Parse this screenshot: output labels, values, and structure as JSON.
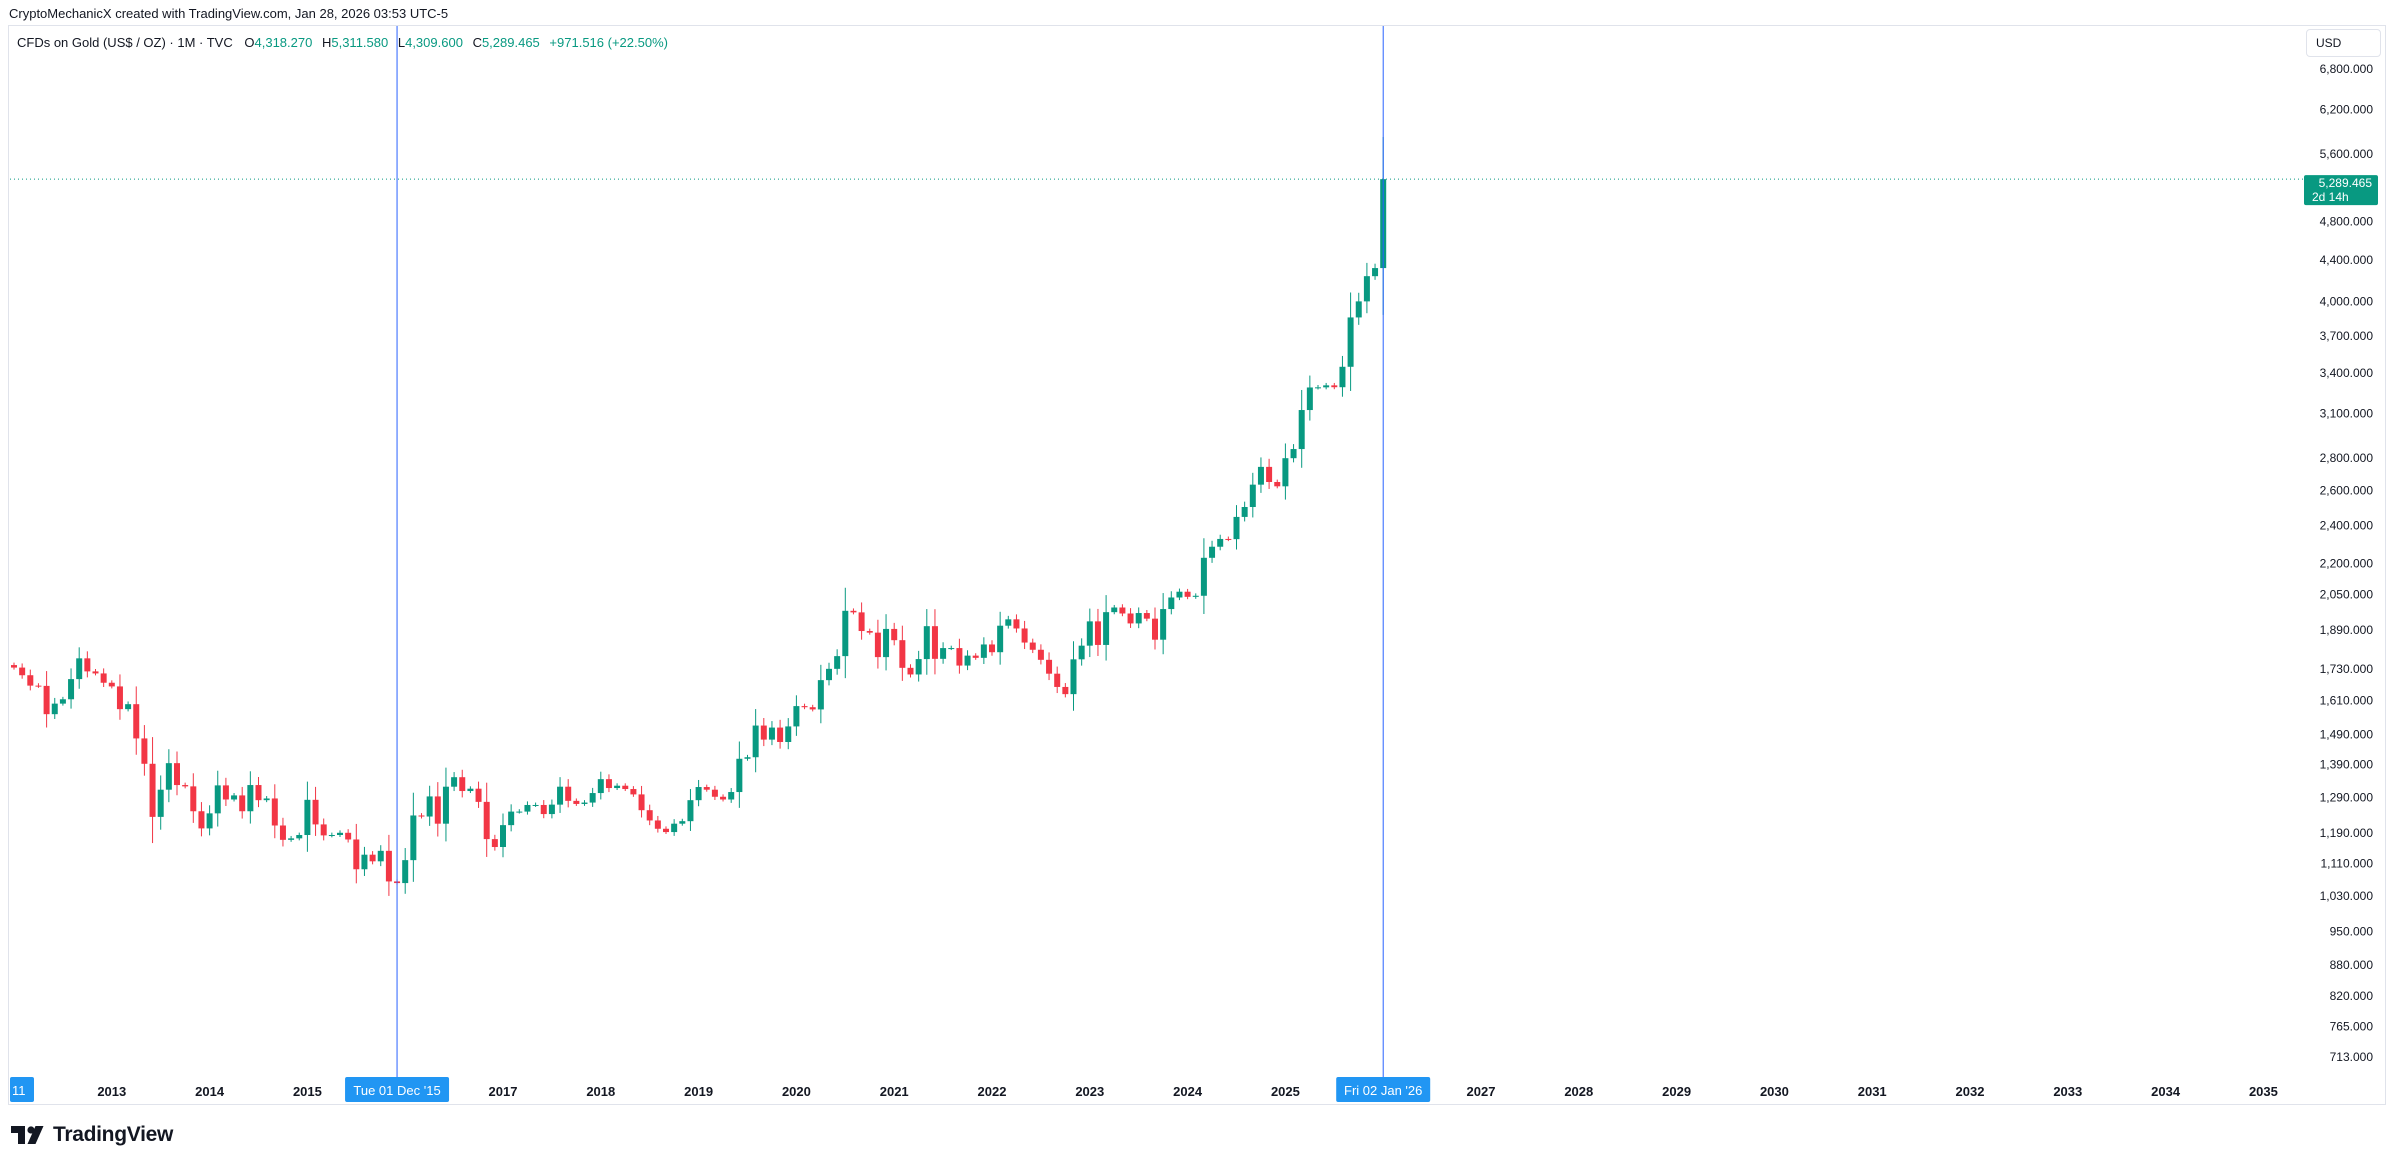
{
  "header": {
    "text": "CryptoMechanicX created with TradingView.com, Jan 28, 2026 03:53 UTC-5"
  },
  "legend": {
    "symbol": "CFDs on Gold (US$ / OZ) · 1M · TVC",
    "o_label": "O",
    "o_value": "4,318.270",
    "h_label": "H",
    "h_value": "5,311.580",
    "l_label": "L",
    "l_value": "4,309.600",
    "c_label": "C",
    "c_value": "5,289.465",
    "change": "+971.516 (+22.50%)"
  },
  "currency": "USD",
  "last_price": {
    "value": "5,289.465",
    "countdown": "2d 14h"
  },
  "crosshair_labels": {
    "left": "Tue 01 Dec '15",
    "right": "Fri 02 Jan '26",
    "edge": "11"
  },
  "footer": {
    "brand": "TradingView"
  },
  "colors": {
    "up": "#089981",
    "down": "#f23645",
    "crosshair": "#2962ff",
    "label_bg": "#2196f3"
  },
  "chart_data": {
    "type": "candlestick",
    "scale": "log",
    "x_ticks": [
      "2013",
      "2014",
      "2015",
      "2017",
      "2018",
      "2019",
      "2020",
      "2021",
      "2022",
      "2023",
      "2024",
      "2025",
      "2027",
      "2028",
      "2029",
      "2030",
      "2031",
      "2032",
      "2033",
      "2034",
      "2035"
    ],
    "y_ticks": [
      "6,800.000",
      "6,200.000",
      "5,600.000",
      "4,800.000",
      "4,400.000",
      "4,000.000",
      "3,700.000",
      "3,400.000",
      "3,100.000",
      "2,800.000",
      "2,600.000",
      "2,400.000",
      "2,200.000",
      "2,050.000",
      "1,890.000",
      "1,730.000",
      "1,610.000",
      "1,490.000",
      "1,390.000",
      "1,290.000",
      "1,190.000",
      "1,110.000",
      "1,030.000",
      "950.000",
      "880.000",
      "820.000",
      "765.000",
      "713.000"
    ],
    "y_tick_values": [
      6800,
      6200,
      5600,
      4800,
      4400,
      4000,
      3700,
      3400,
      3100,
      2800,
      2600,
      2400,
      2200,
      2050,
      1890,
      1730,
      1610,
      1490,
      1390,
      1290,
      1190,
      1110,
      1030,
      950,
      880,
      820,
      765,
      713
    ],
    "x_range": [
      "2012-01",
      "2035-12"
    ],
    "y_range": [
      680,
      7300
    ],
    "candle_closes": [
      [
        "2012-01",
        1735
      ],
      [
        "2012-02",
        1705
      ],
      [
        "2012-03",
        1665
      ],
      [
        "2012-04",
        1664
      ],
      [
        "2012-05",
        1560
      ],
      [
        "2012-06",
        1598
      ],
      [
        "2012-07",
        1614
      ],
      [
        "2012-08",
        1690
      ],
      [
        "2012-09",
        1772
      ],
      [
        "2012-10",
        1720
      ],
      [
        "2012-11",
        1712
      ],
      [
        "2012-12",
        1676
      ],
      [
        "2013-01",
        1662
      ],
      [
        "2013-02",
        1578
      ],
      [
        "2013-03",
        1596
      ],
      [
        "2013-04",
        1476
      ],
      [
        "2013-05",
        1393
      ],
      [
        "2013-06",
        1234
      ],
      [
        "2013-07",
        1313
      ],
      [
        "2013-08",
        1395
      ],
      [
        "2013-09",
        1327
      ],
      [
        "2013-10",
        1323
      ],
      [
        "2013-11",
        1250
      ],
      [
        "2013-12",
        1202
      ],
      [
        "2014-01",
        1244
      ],
      [
        "2014-02",
        1326
      ],
      [
        "2014-03",
        1284
      ],
      [
        "2014-04",
        1296
      ],
      [
        "2014-05",
        1250
      ],
      [
        "2014-06",
        1327
      ],
      [
        "2014-07",
        1282
      ],
      [
        "2014-08",
        1287
      ],
      [
        "2014-09",
        1210
      ],
      [
        "2014-10",
        1171
      ],
      [
        "2014-11",
        1175
      ],
      [
        "2014-12",
        1184
      ],
      [
        "2015-01",
        1283
      ],
      [
        "2015-02",
        1213
      ],
      [
        "2015-03",
        1183
      ],
      [
        "2015-04",
        1184
      ],
      [
        "2015-05",
        1190
      ],
      [
        "2015-06",
        1172
      ],
      [
        "2015-07",
        1095
      ],
      [
        "2015-08",
        1132
      ],
      [
        "2015-09",
        1115
      ],
      [
        "2015-10",
        1142
      ],
      [
        "2015-11",
        1065
      ],
      [
        "2015-12",
        1061
      ],
      [
        "2016-01",
        1118
      ],
      [
        "2016-02",
        1238
      ],
      [
        "2016-03",
        1235
      ],
      [
        "2016-04",
        1293
      ],
      [
        "2016-05",
        1215
      ],
      [
        "2016-06",
        1322
      ],
      [
        "2016-07",
        1351
      ],
      [
        "2016-08",
        1309
      ],
      [
        "2016-09",
        1316
      ],
      [
        "2016-10",
        1277
      ],
      [
        "2016-11",
        1173
      ],
      [
        "2016-12",
        1152
      ],
      [
        "2017-01",
        1211
      ],
      [
        "2017-02",
        1249
      ],
      [
        "2017-03",
        1249
      ],
      [
        "2017-04",
        1268
      ],
      [
        "2017-05",
        1268
      ],
      [
        "2017-06",
        1242
      ],
      [
        "2017-07",
        1269
      ],
      [
        "2017-08",
        1322
      ],
      [
        "2017-09",
        1280
      ],
      [
        "2017-10",
        1271
      ],
      [
        "2017-11",
        1275
      ],
      [
        "2017-12",
        1303
      ],
      [
        "2018-01",
        1345
      ],
      [
        "2018-02",
        1318
      ],
      [
        "2018-03",
        1325
      ],
      [
        "2018-04",
        1315
      ],
      [
        "2018-05",
        1299
      ],
      [
        "2018-06",
        1253
      ],
      [
        "2018-07",
        1224
      ],
      [
        "2018-08",
        1201
      ],
      [
        "2018-09",
        1192
      ],
      [
        "2018-10",
        1215
      ],
      [
        "2018-11",
        1222
      ],
      [
        "2018-12",
        1282
      ],
      [
        "2019-01",
        1321
      ],
      [
        "2019-02",
        1313
      ],
      [
        "2019-03",
        1292
      ],
      [
        "2019-04",
        1284
      ],
      [
        "2019-05",
        1306
      ],
      [
        "2019-06",
        1409
      ],
      [
        "2019-07",
        1414
      ],
      [
        "2019-08",
        1520
      ],
      [
        "2019-09",
        1472
      ],
      [
        "2019-10",
        1513
      ],
      [
        "2019-11",
        1464
      ],
      [
        "2019-12",
        1517
      ],
      [
        "2020-01",
        1589
      ],
      [
        "2020-02",
        1585
      ],
      [
        "2020-03",
        1577
      ],
      [
        "2020-04",
        1686
      ],
      [
        "2020-05",
        1730
      ],
      [
        "2020-06",
        1781
      ],
      [
        "2020-07",
        1975
      ],
      [
        "2020-08",
        1968
      ],
      [
        "2020-09",
        1886
      ],
      [
        "2020-10",
        1879
      ],
      [
        "2020-11",
        1777
      ],
      [
        "2020-12",
        1895
      ],
      [
        "2021-01",
        1847
      ],
      [
        "2021-02",
        1734
      ],
      [
        "2021-03",
        1708
      ],
      [
        "2021-04",
        1769
      ],
      [
        "2021-05",
        1907
      ],
      [
        "2021-06",
        1770
      ],
      [
        "2021-07",
        1814
      ],
      [
        "2021-08",
        1814
      ],
      [
        "2021-09",
        1743
      ],
      [
        "2021-10",
        1783
      ],
      [
        "2021-11",
        1774
      ],
      [
        "2021-12",
        1829
      ],
      [
        "2022-01",
        1797
      ],
      [
        "2022-02",
        1909
      ],
      [
        "2022-03",
        1937
      ],
      [
        "2022-04",
        1897
      ],
      [
        "2022-05",
        1837
      ],
      [
        "2022-06",
        1807
      ],
      [
        "2022-07",
        1766
      ],
      [
        "2022-08",
        1711
      ],
      [
        "2022-09",
        1660
      ],
      [
        "2022-10",
        1633
      ],
      [
        "2022-11",
        1768
      ],
      [
        "2022-12",
        1824
      ],
      [
        "2023-01",
        1928
      ],
      [
        "2023-02",
        1827
      ],
      [
        "2023-03",
        1969
      ],
      [
        "2023-04",
        1990
      ],
      [
        "2023-05",
        1963
      ],
      [
        "2023-06",
        1919
      ],
      [
        "2023-07",
        1965
      ],
      [
        "2023-08",
        1940
      ],
      [
        "2023-09",
        1849
      ],
      [
        "2023-10",
        1983
      ],
      [
        "2023-11",
        2036
      ],
      [
        "2023-12",
        2063
      ],
      [
        "2024-01",
        2039
      ],
      [
        "2024-02",
        2044
      ],
      [
        "2024-03",
        2229
      ],
      [
        "2024-04",
        2286
      ],
      [
        "2024-05",
        2327
      ],
      [
        "2024-06",
        2326
      ],
      [
        "2024-07",
        2447
      ],
      [
        "2024-08",
        2503
      ],
      [
        "2024-09",
        2634
      ],
      [
        "2024-10",
        2743
      ],
      [
        "2024-11",
        2650
      ],
      [
        "2024-12",
        2624
      ],
      [
        "2025-01",
        2798
      ],
      [
        "2025-02",
        2857
      ],
      [
        "2025-03",
        3123
      ],
      [
        "2025-04",
        3288
      ],
      [
        "2025-05",
        3289
      ],
      [
        "2025-06",
        3304
      ],
      [
        "2025-07",
        3290
      ],
      [
        "2025-08",
        3447
      ],
      [
        "2025-09",
        3858
      ],
      [
        "2025-10",
        4002
      ],
      [
        "2025-11",
        4239
      ],
      [
        "2025-12",
        4318
      ],
      [
        "2026-01",
        5289.465
      ]
    ]
  }
}
